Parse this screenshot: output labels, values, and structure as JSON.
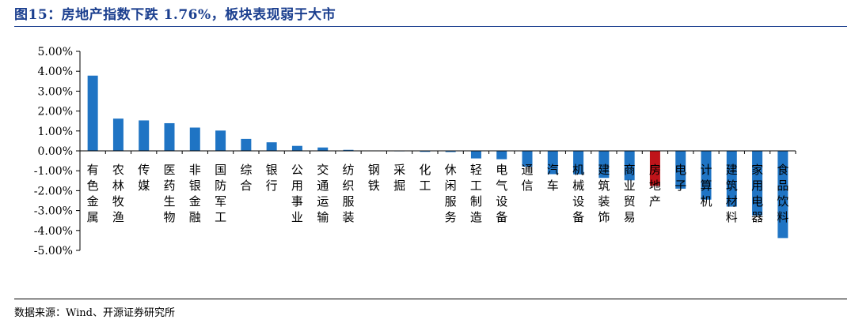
{
  "title": "图15：房地产指数下跌 1.76%，板块表现弱于大市",
  "source": "数据来源：Wind、开源证券研究所",
  "colors": {
    "bar": "#1f74c4",
    "highlight": "#c0141a",
    "title": "#1b3f8f",
    "axis": "#000000"
  },
  "chart_data": {
    "type": "bar",
    "title": "",
    "xlabel": "",
    "ylabel": "",
    "ylim": [
      -5,
      5
    ],
    "y_ticks": [
      "5.00%",
      "4.00%",
      "3.00%",
      "2.00%",
      "1.00%",
      "0.00%",
      "-1.00%",
      "-2.00%",
      "-3.00%",
      "-4.00%",
      "-5.00%"
    ],
    "grid": false,
    "legend": "none",
    "highlight_category": "房地产",
    "categories": [
      "有色金属",
      "农林牧渔",
      "传媒",
      "医药生物",
      "非银金融",
      "国防军工",
      "综合",
      "银行",
      "公用事业",
      "交通运输",
      "纺织服装",
      "钢铁",
      "采掘",
      "化工",
      "休闲服务",
      "轻工制造",
      "电气设备",
      "通信",
      "汽车",
      "机械设备",
      "建筑装饰",
      "商业贸易",
      "房地产",
      "电子",
      "计算机",
      "建筑材料",
      "家用电器",
      "食品饮料"
    ],
    "values": [
      3.78,
      1.62,
      1.53,
      1.39,
      1.17,
      1.02,
      0.6,
      0.43,
      0.25,
      0.17,
      0.05,
      0.02,
      -0.01,
      -0.05,
      -0.06,
      -0.38,
      -0.42,
      -0.79,
      -1.17,
      -1.18,
      -1.36,
      -1.48,
      -1.76,
      -1.9,
      -2.45,
      -2.8,
      -3.25,
      -4.38
    ]
  }
}
